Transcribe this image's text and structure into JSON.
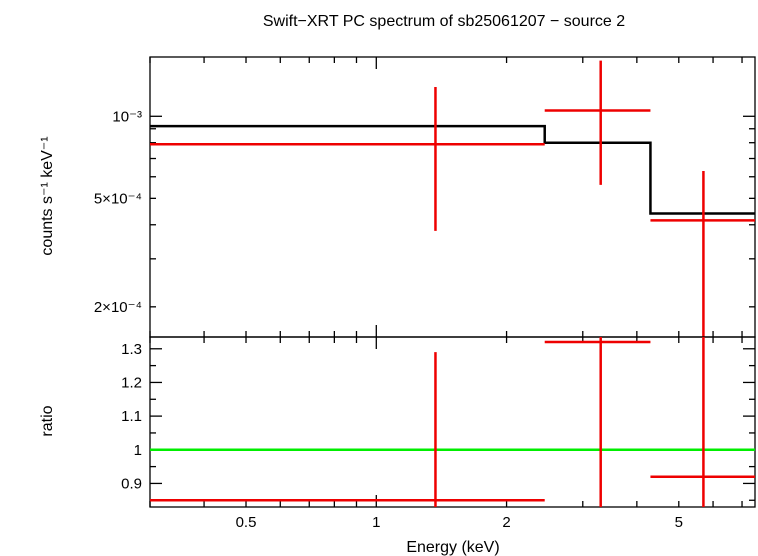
{
  "chart_data": [
    {
      "type": "line",
      "panel": "spectrum",
      "title": "Swift−XRT PC spectrum of sb25061207 − source 2",
      "ylabel": "counts s⁻¹ keV⁻¹",
      "yscale": "log",
      "ylim": [
        0.000155,
        0.00165
      ],
      "xscale": "log",
      "xlim": [
        0.3,
        7.5
      ],
      "yticks_labeled": [
        {
          "value": 0.001,
          "label": "10⁻³"
        },
        {
          "value": 0.0005,
          "label": "5×10⁻⁴"
        },
        {
          "value": 0.0002,
          "label": "2×10⁻⁴"
        }
      ],
      "data_points": [
        {
          "x": 1.37,
          "xlo": 0.3,
          "xhi": 2.45,
          "y": 0.00079,
          "ylo": 0.00038,
          "yhi": 0.00128
        },
        {
          "x": 3.3,
          "xlo": 2.45,
          "xhi": 4.3,
          "y": 0.00105,
          "ylo": 0.00056,
          "yhi": 0.0016
        },
        {
          "x": 5.7,
          "xlo": 4.3,
          "xhi": 7.5,
          "y": 0.000415,
          "ylo": 0.000155,
          "yhi": 0.00063
        }
      ],
      "model_steps": [
        {
          "xlo": 0.3,
          "xhi": 2.45,
          "y": 0.00092
        },
        {
          "xlo": 2.45,
          "xhi": 4.3,
          "y": 0.0008
        },
        {
          "xlo": 4.3,
          "xhi": 7.5,
          "y": 0.00044
        }
      ],
      "colors": {
        "data": "#ee0000",
        "model": "#000000"
      }
    },
    {
      "type": "line",
      "panel": "ratio",
      "ylabel": "ratio",
      "xlabel": "Energy (keV)",
      "xscale": "log",
      "xlim": [
        0.3,
        7.5
      ],
      "ylim": [
        0.83,
        1.335
      ],
      "yticks_labeled": [
        {
          "value": 0.9,
          "label": "0.9"
        },
        {
          "value": 1.0,
          "label": "1"
        },
        {
          "value": 1.1,
          "label": "1.1"
        },
        {
          "value": 1.2,
          "label": "1.2"
        },
        {
          "value": 1.3,
          "label": "1.3"
        }
      ],
      "xticks_labeled": [
        {
          "value": 0.5,
          "label": "0.5"
        },
        {
          "value": 1,
          "label": "1"
        },
        {
          "value": 2,
          "label": "2"
        },
        {
          "value": 5,
          "label": "5"
        }
      ],
      "data_points": [
        {
          "x": 1.37,
          "xlo": 0.3,
          "xhi": 2.45,
          "y": 0.85,
          "ylo": 0.83,
          "yhi": 1.29
        },
        {
          "x": 3.3,
          "xlo": 2.45,
          "xhi": 4.3,
          "y": 1.32,
          "ylo": 0.83,
          "yhi": 1.335
        },
        {
          "x": 5.7,
          "xlo": 4.3,
          "xhi": 7.5,
          "y": 0.92,
          "ylo": 0.83,
          "yhi": 1.335
        }
      ],
      "reference_line": 1.0,
      "colors": {
        "data": "#ee0000",
        "reference": "#00ee00"
      }
    }
  ]
}
